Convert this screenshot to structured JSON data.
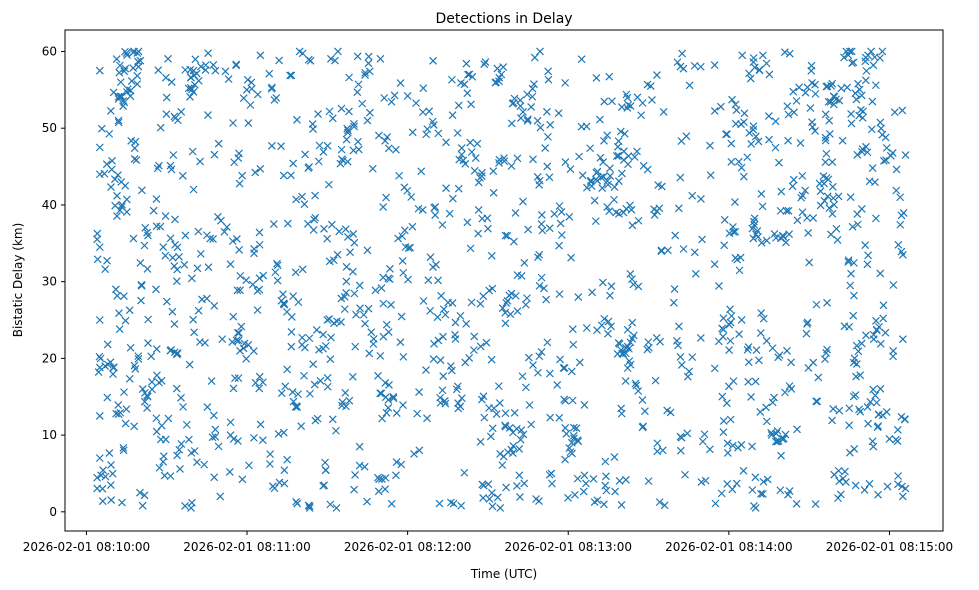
{
  "chart_data": {
    "type": "scatter",
    "title": "Detections in Delay",
    "xlabel": "Time (UTC)",
    "ylabel": "Bistatic Delay (km)",
    "x_axis": {
      "type": "time",
      "range": [
        "2026-02-01 08:09:52",
        "2026-02-01 08:15:20"
      ],
      "ticks": [
        "2026-02-01 08:10:00",
        "2026-02-01 08:11:00",
        "2026-02-01 08:12:00",
        "2026-02-01 08:13:00",
        "2026-02-01 08:14:00",
        "2026-02-01 08:15:00"
      ]
    },
    "y_axis": {
      "range": [
        -2.5,
        62.8
      ],
      "ticks": [
        0,
        10,
        20,
        30,
        40,
        50,
        60
      ]
    },
    "grid": false,
    "marker": "x",
    "color": "#1f77b4",
    "series": [
      {
        "name": "",
        "x_start": "2026-02-01 08:10:04",
        "x_end": "2026-02-01 08:15:06",
        "y_min": 0.5,
        "y_max": 60,
        "count": 1500,
        "points": [
          [
            "2026-02-01 08:10:05",
            57.5
          ],
          [
            "2026-02-01 08:10:05",
            47.5
          ],
          [
            "2026-02-01 08:10:05",
            44.0
          ],
          [
            "2026-02-01 08:10:05",
            34.5
          ],
          [
            "2026-02-01 08:10:05",
            25.0
          ],
          [
            "2026-02-01 08:10:05",
            18.8
          ],
          [
            "2026-02-01 08:10:05",
            12.5
          ],
          [
            "2026-02-01 08:10:05",
            7.0
          ],
          [
            "2026-02-01 08:10:06",
            3.0
          ],
          [
            "2026-02-01 08:10:07",
            19.0
          ],
          [
            "2026-02-01 08:10:08",
            19.2
          ],
          [
            "2026-02-01 08:10:09",
            19.5
          ],
          [
            "2026-02-01 08:10:10",
            18.8
          ],
          [
            "2026-02-01 08:10:11",
            29.0
          ],
          [
            "2026-02-01 08:10:12",
            51.0
          ],
          [
            "2026-02-01 08:10:13",
            43.0
          ],
          [
            "2026-02-01 08:10:15",
            59.8
          ],
          [
            "2026-02-01 08:10:18",
            46.0
          ],
          [
            "2026-02-01 08:10:20",
            2.5
          ],
          [
            "2026-02-01 08:10:21",
            0.8
          ],
          [
            "2026-02-01 08:10:19",
            59.8
          ],
          [
            "2026-02-01 08:10:23",
            22.0
          ],
          [
            "2026-02-01 08:10:26",
            29.0
          ],
          [
            "2026-02-01 08:10:30",
            54.0
          ],
          [
            "2026-02-01 08:10:33",
            20.8
          ],
          [
            "2026-02-01 08:10:36",
            43.8
          ],
          [
            "2026-02-01 08:10:40",
            57.5
          ],
          [
            "2026-02-01 08:10:45",
            27.8
          ],
          [
            "2026-02-01 08:10:50",
            2.0
          ],
          [
            "2026-02-01 08:10:55",
            9.5
          ],
          [
            "2026-02-01 08:11:05",
            59.5
          ],
          [
            "2026-02-01 08:11:10",
            37.5
          ],
          [
            "2026-02-01 08:11:15",
            6.8
          ],
          [
            "2026-02-01 08:11:30",
            25.0
          ],
          [
            "2026-02-01 08:11:45",
            51.0
          ],
          [
            "2026-02-01 08:12:00",
            54.2
          ],
          [
            "2026-02-01 08:12:20",
            0.8
          ],
          [
            "2026-02-01 08:12:35",
            57.0
          ],
          [
            "2026-02-01 08:12:45",
            36.8
          ],
          [
            "2026-02-01 08:12:50",
            37.5
          ],
          [
            "2026-02-01 08:13:05",
            59.0
          ],
          [
            "2026-02-01 08:13:15",
            24.8
          ],
          [
            "2026-02-01 08:13:20",
            12.8
          ],
          [
            "2026-02-01 08:13:30",
            4.0
          ],
          [
            "2026-02-01 08:13:50",
            35.5
          ],
          [
            "2026-02-01 08:14:05",
            59.5
          ],
          [
            "2026-02-01 08:14:10",
            17.0
          ],
          [
            "2026-02-01 08:14:15",
            48.5
          ],
          [
            "2026-02-01 08:14:30",
            32.5
          ],
          [
            "2026-02-01 08:14:45",
            13.5
          ],
          [
            "2026-02-01 08:14:52",
            59.5
          ],
          [
            "2026-02-01 08:15:00",
            9.5
          ],
          [
            "2026-02-01 08:15:04",
            41.0
          ],
          [
            "2026-02-01 08:15:05",
            33.5
          ],
          [
            "2026-02-01 08:15:05",
            22.5
          ],
          [
            "2026-02-01 08:15:05",
            2.0
          ],
          [
            "2026-02-01 08:15:06",
            46.5
          ]
        ]
      }
    ]
  }
}
